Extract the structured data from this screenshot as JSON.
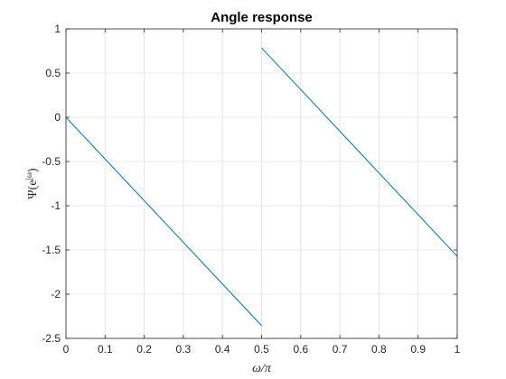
{
  "chart_data": {
    "type": "line",
    "title": "Angle response",
    "xlabel": "ω/π",
    "ylabel_main": "Ψ(e",
    "ylabel_sup": "jω",
    "ylabel_close": ")",
    "xlim": [
      0,
      1
    ],
    "ylim": [
      -2.5,
      1
    ],
    "grid": true,
    "x_ticks": [
      0,
      0.1,
      0.2,
      0.3,
      0.4,
      0.5,
      0.6,
      0.7,
      0.8,
      0.9,
      1
    ],
    "x_tick_labels": [
      "0",
      "0.1",
      "0.2",
      "0.3",
      "0.4",
      "0.5",
      "0.6",
      "0.7",
      "0.8",
      "0.9",
      "1"
    ],
    "y_ticks": [
      1,
      0.5,
      0,
      -0.5,
      -1,
      -1.5,
      -2,
      -2.5
    ],
    "y_tick_labels": [
      "1",
      "0.5",
      "0",
      "-0.5",
      "-1",
      "-1.5",
      "-2",
      "-2.5"
    ],
    "line_color": "#0072bd",
    "series": [
      {
        "segments": [
          {
            "x": [
              0,
              0.5
            ],
            "y": [
              0,
              -2.356
            ]
          },
          {
            "x": [
              0.5,
              1
            ],
            "y": [
              0.785,
              -1.571
            ]
          }
        ]
      }
    ]
  }
}
